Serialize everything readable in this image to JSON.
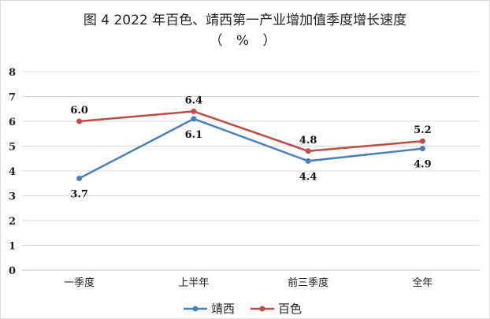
{
  "chart_data": {
    "type": "line",
    "title": "图 4  2022 年百色、靖西第一产业增加值季度增长速度",
    "subtitle": "（ % ）",
    "categories": [
      "一季度",
      "上半年",
      "前三季度",
      "全年"
    ],
    "ylim": [
      0,
      8
    ],
    "yticks": [
      "0",
      "1",
      "2",
      "3",
      "4",
      "5",
      "6",
      "7",
      "8"
    ],
    "grid": true,
    "legend": "bottom",
    "series": [
      {
        "name": "靖西",
        "values": [
          3.7,
          6.1,
          4.4,
          4.9
        ],
        "labels": [
          "3.7",
          "6.1",
          "4.4",
          "4.9"
        ],
        "color": "#4a7ebb"
      },
      {
        "name": "百色",
        "values": [
          6.0,
          6.4,
          4.8,
          5.2
        ],
        "labels": [
          "6.0",
          "6.4",
          "4.8",
          "5.2"
        ],
        "color": "#be4b48"
      }
    ]
  }
}
